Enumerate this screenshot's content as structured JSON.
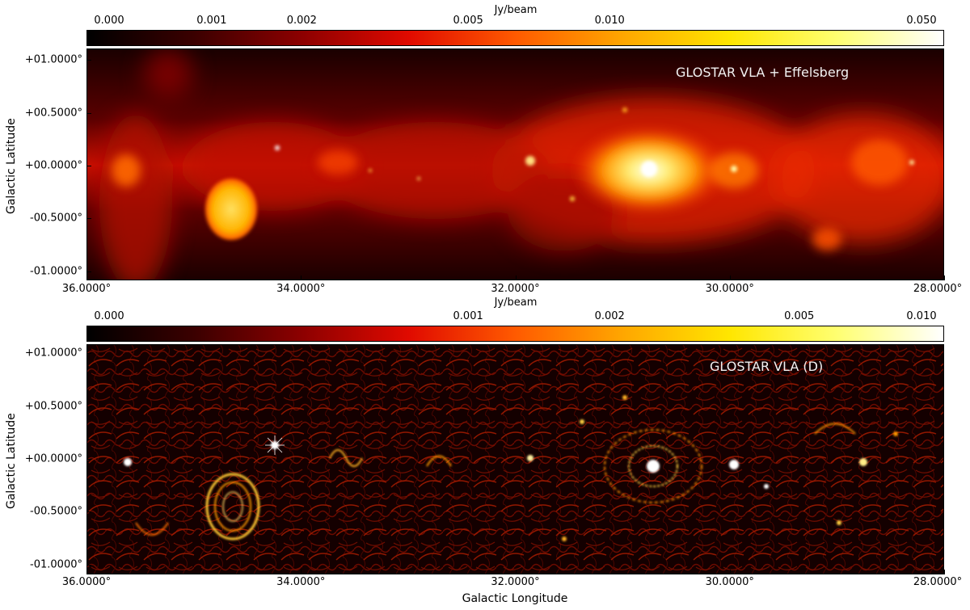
{
  "top_panel": {
    "colorbar": {
      "unit": "Jy/beam",
      "ticks": [
        "0.000",
        "0.001",
        "0.002",
        "0.005",
        "0.010",
        "0.050"
      ],
      "tick_fractions": [
        0.0,
        0.146,
        0.251,
        0.445,
        0.61,
        1.0
      ],
      "colors": [
        "#000000",
        "#3b0000",
        "#8c0000",
        "#e00a00",
        "#ff5a00",
        "#ffa600",
        "#ffe600",
        "#ffff70",
        "#ffffff"
      ]
    },
    "label": "GLOSTAR VLA + Effelsberg",
    "y_ticks": [
      "+01.0000°",
      "+00.5000°",
      "+00.0000°",
      "-00.5000°",
      "-01.0000°"
    ],
    "y_values": [
      1.0,
      0.5,
      0.0,
      -0.5,
      -1.0
    ],
    "x_ticks": [
      "36.0000°",
      "34.0000°",
      "32.0000°",
      "30.0000°",
      "28.0000°"
    ],
    "x_values": [
      36.0,
      34.0,
      32.0,
      30.0,
      28.0
    ],
    "ylabel": "Galactic Latitude"
  },
  "bottom_panel": {
    "colorbar": {
      "unit": "Jy/beam",
      "ticks": [
        "0.000",
        "0.001",
        "0.002",
        "0.005",
        "0.010"
      ],
      "tick_fractions": [
        0.0,
        0.445,
        0.61,
        0.831,
        1.0
      ],
      "colors": [
        "#000000",
        "#3b0000",
        "#8c0000",
        "#e00a00",
        "#ff5a00",
        "#ffa600",
        "#ffe600",
        "#ffff70",
        "#ffffff"
      ]
    },
    "label": "GLOSTAR VLA (D)",
    "y_ticks": [
      "+01.0000°",
      "+00.5000°",
      "+00.0000°",
      "-00.5000°",
      "-01.0000°"
    ],
    "y_values": [
      1.0,
      0.5,
      0.0,
      -0.5,
      -1.0
    ],
    "x_ticks": [
      "36.0000°",
      "34.0000°",
      "32.0000°",
      "30.0000°",
      "28.0000°"
    ],
    "x_values": [
      36.0,
      34.0,
      32.0,
      30.0,
      28.0
    ],
    "ylabel": "Galactic Latitude",
    "xlabel": "Galactic Longitude"
  }
}
